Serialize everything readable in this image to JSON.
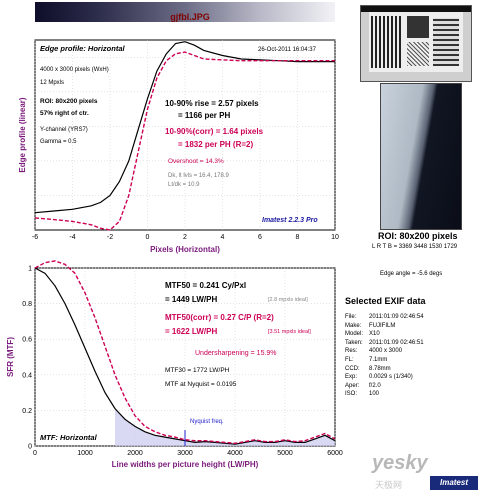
{
  "header": {
    "file_name": "gjfbl.JPG"
  },
  "chart_data": [
    {
      "type": "line",
      "title": "Edge profile: Horizontal",
      "xlabel": "Pixels (Horizontal)",
      "ylabel": "Edge profile (linear)",
      "xlim": [
        -6,
        10
      ],
      "ylim": [
        0,
        1.1
      ],
      "xticks": [
        "-6",
        "-4",
        "-2",
        "0",
        "2",
        "4",
        "6",
        "8",
        "10"
      ],
      "grid": true,
      "series": [
        {
          "style": "solid",
          "color": "#000000",
          "x": [
            -6,
            -5,
            -4,
            -3,
            -2.5,
            -2,
            -1.5,
            -1,
            -0.5,
            0,
            0.5,
            1,
            1.5,
            2,
            2.5,
            3,
            4,
            5,
            6,
            7,
            8,
            9,
            10
          ],
          "y": [
            0.1,
            0.11,
            0.12,
            0.14,
            0.16,
            0.2,
            0.28,
            0.4,
            0.58,
            0.76,
            0.92,
            1.02,
            1.08,
            1.09,
            1.07,
            1.04,
            1.01,
            0.99,
            0.985,
            0.98,
            0.975,
            0.975,
            0.975
          ]
        },
        {
          "style": "dashed",
          "color": "#cc0055",
          "x": [
            -6,
            -5,
            -4,
            -3,
            -2.5,
            -2,
            -1.5,
            -1,
            -0.5,
            0,
            0.5,
            1,
            1.5,
            2,
            2.5,
            3,
            4,
            5,
            6,
            7,
            8,
            9,
            10
          ],
          "y": [
            0.07,
            0.06,
            0.05,
            0.03,
            0.01,
            0.0,
            0.05,
            0.2,
            0.45,
            0.7,
            0.88,
            0.98,
            1.02,
            1.03,
            1.01,
            0.99,
            0.985,
            0.98,
            0.98,
            0.98,
            0.98,
            0.98,
            0.98
          ]
        }
      ],
      "annotations": {
        "date": "26-Oct-2011 16:04:37",
        "pixels": "4000 x 3000 pixels (WxH)",
        "mpxls": "12 Mpxls",
        "roi": "ROI: 80x200 pixels",
        "position": "57% right of ctr.",
        "channel": "Y-channel  (YRS7)",
        "gamma": "Gamma = 0.5",
        "rise_line1": "10-90% rise = 2.57 pixels",
        "rise_line2": "= 1166 per PH",
        "corr_line1": "10-90%(corr) = 1.64 pixels",
        "corr_line2": "= 1832 per PH   (R=2)",
        "overshoot": "Overshoot = 14.3%",
        "dk_lt": "Dk, lt lvls = 16.4, 178.9",
        "lt_dk": "Lt/dk = 10.9",
        "version": "Imatest 2.2.3 Pro"
      }
    },
    {
      "type": "line",
      "title": "MTF: Horizontal",
      "xlabel": "Line widths per picture height (LW/PH)",
      "ylabel": "SFR (MTF)",
      "xlim": [
        0,
        6000
      ],
      "ylim": [
        0,
        1
      ],
      "xticks": [
        "0",
        "1000",
        "2000",
        "3000",
        "4000",
        "5000",
        "6000"
      ],
      "yticks": [
        "0",
        "0.2",
        "0.4",
        "0.6",
        "0.8",
        "1"
      ],
      "grid": true,
      "series": [
        {
          "style": "solid",
          "color": "#000000",
          "x": [
            0,
            200,
            400,
            600,
            800,
            1000,
            1200,
            1400,
            1600,
            1800,
            2000,
            2200,
            2400,
            2600,
            2800,
            3000,
            3200,
            3400,
            3600,
            3800,
            4000,
            4200,
            4400,
            4600,
            4800,
            5000,
            5200,
            5400,
            5600,
            5800,
            6000
          ],
          "y": [
            1.0,
            0.97,
            0.9,
            0.8,
            0.68,
            0.55,
            0.42,
            0.3,
            0.21,
            0.15,
            0.11,
            0.08,
            0.06,
            0.05,
            0.04,
            0.03,
            0.02,
            0.025,
            0.02,
            0.015,
            0.01,
            0.02,
            0.03,
            0.02,
            0.02,
            0.03,
            0.02,
            0.02,
            0.04,
            0.06,
            0.03
          ]
        },
        {
          "style": "dashed",
          "color": "#cc0055",
          "x": [
            0,
            200,
            400,
            600,
            800,
            1000,
            1200,
            1400,
            1600,
            1800,
            2000,
            2200,
            2400,
            2600,
            2800,
            3000,
            3200,
            3400,
            3600,
            3800,
            4000,
            4200,
            4400,
            4600,
            4800,
            5000,
            5200,
            5400,
            5600,
            5800,
            6000
          ],
          "y": [
            1.0,
            1.03,
            1.04,
            1.02,
            0.97,
            0.86,
            0.72,
            0.56,
            0.4,
            0.27,
            0.17,
            0.11,
            0.08,
            0.06,
            0.05,
            0.035,
            0.03,
            0.03,
            0.025,
            0.02,
            0.015,
            0.025,
            0.035,
            0.025,
            0.025,
            0.035,
            0.025,
            0.03,
            0.05,
            0.07,
            0.04
          ]
        }
      ],
      "annotations": {
        "mtf50": "MTF50 = 0.241 Cy/Pxl",
        "mtf50_lw": "= 1449 LW/PH",
        "ideal1": "[2.8 mpxls ideal]",
        "mtf50_corr": "MTF50(corr) = 0.27 C/P  (R=2)",
        "mtf50_corr_lw": "= 1622 LW/PH",
        "ideal2": "[3.51 mpxls ideal]",
        "undersharp": "Undersharpening = 15.9%",
        "mtf30": "MTF30 = 1772 LW/PH",
        "nyquist": "MTF at Nyquist = 0.0195",
        "nyquist_label": "Nyquist freq.",
        "nyquist_x": 3000
      }
    }
  ],
  "roi_panel": {
    "title": "ROI: 80x200 pixels",
    "coords": "L R T B = 3369 3448 1530 1729",
    "edge_angle": "Edge angle = -5.6 degs"
  },
  "exif": {
    "title": "Selected EXIF data",
    "rows": [
      {
        "key": "File:",
        "value": "2011:01:09 02:46:54"
      },
      {
        "key": "Make:",
        "value": "FUJIFILM"
      },
      {
        "key": "Model:",
        "value": "X10"
      },
      {
        "key": "Taken:",
        "value": "2011:01:09 02:46:51"
      },
      {
        "key": "Res:",
        "value": "4000 x 3000"
      },
      {
        "key": "FL:",
        "value": "7.1mm"
      },
      {
        "key": "CCD:",
        "value": "8.78mm"
      },
      {
        "key": "Exp:",
        "value": "0.0029 s (1/340)"
      },
      {
        "key": "Aper:",
        "value": "f/2.0"
      },
      {
        "key": "ISO:",
        "value": "100"
      }
    ]
  },
  "watermark": {
    "text": "yesky",
    "sub": "天极网",
    "logo": "Imatest"
  }
}
